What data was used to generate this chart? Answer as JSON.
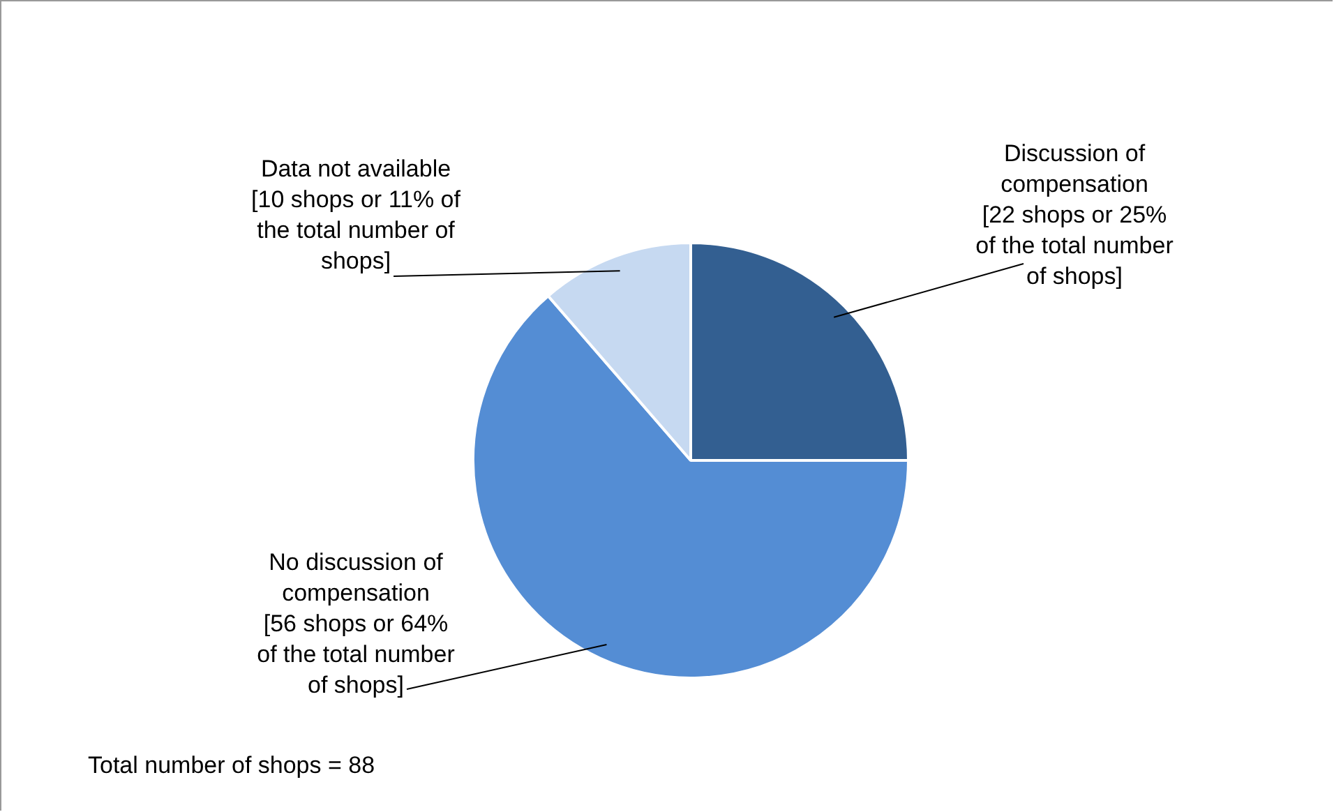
{
  "chart_data": {
    "type": "pie",
    "categories": [
      "Discussion of compensation",
      "No discussion of compensation",
      "Data not available"
    ],
    "values": [
      22,
      56,
      10
    ],
    "colors": [
      "#335f91",
      "#548dd4",
      "#c6d9f1"
    ],
    "value_labels": [
      "[22 shops or 25% of the total number of shops]",
      "[56 shops or 64% of the total number of shops]",
      "[10 shops or 11% of the total number of shops]"
    ],
    "legend": false,
    "annotations": [
      "Total number of shops = 88"
    ]
  }
}
